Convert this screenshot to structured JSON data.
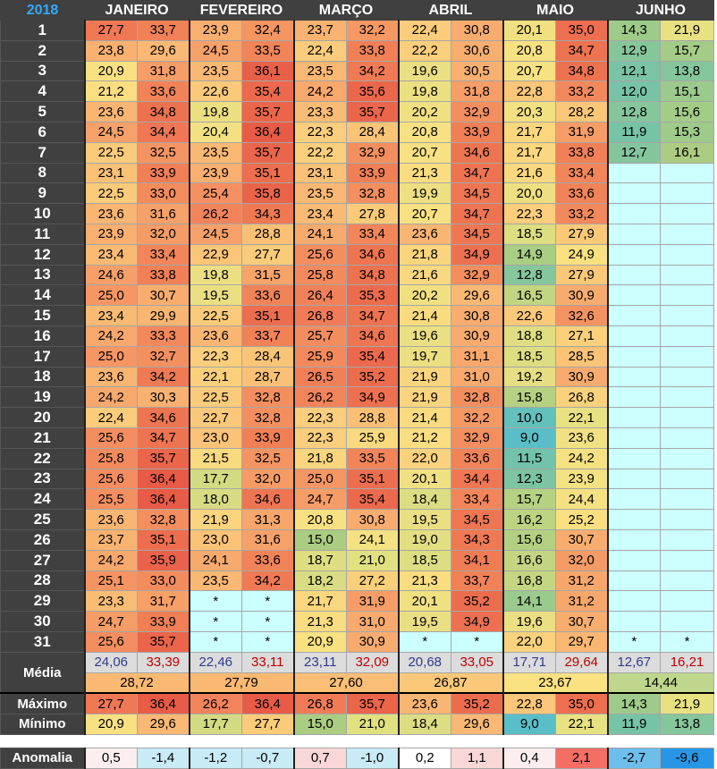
{
  "header": {
    "year": "2018",
    "months": [
      "JANEIRO",
      "FEVEREIRO",
      "MARÇO",
      "ABRIL",
      "MAIO",
      "JUNHO"
    ]
  },
  "days": [
    [
      "27,7",
      "33,7",
      "23,9",
      "32,4",
      "23,7",
      "32,2",
      "22,4",
      "30,8",
      "20,1",
      "35,0",
      "14,3",
      "21,9"
    ],
    [
      "23,8",
      "29,6",
      "24,5",
      "33,5",
      "22,4",
      "33,8",
      "22,2",
      "30,6",
      "20,8",
      "34,7",
      "12,9",
      "15,7"
    ],
    [
      "20,9",
      "31,8",
      "23,5",
      "36,1",
      "23,5",
      "34,2",
      "19,6",
      "30,5",
      "20,7",
      "34,8",
      "12,1",
      "13,8"
    ],
    [
      "21,2",
      "33,6",
      "22,6",
      "35,4",
      "24,2",
      "35,6",
      "19,8",
      "31,8",
      "22,8",
      "33,2",
      "12,0",
      "15,1"
    ],
    [
      "23,6",
      "34,8",
      "19,8",
      "35,7",
      "23,3",
      "35,7",
      "20,2",
      "32,9",
      "20,3",
      "28,2",
      "12,8",
      "15,6"
    ],
    [
      "24,5",
      "34,4",
      "20,4",
      "36,4",
      "22,3",
      "28,4",
      "20,8",
      "33,9",
      "21,7",
      "31,9",
      "11,9",
      "15,3"
    ],
    [
      "22,5",
      "32,5",
      "23,5",
      "35,7",
      "22,2",
      "32,9",
      "20,7",
      "34,6",
      "21,7",
      "33,8",
      "12,7",
      "16,1"
    ],
    [
      "23,1",
      "33,9",
      "23,9",
      "35,1",
      "23,1",
      "33,9",
      "21,3",
      "34,7",
      "21,6",
      "33,4",
      "",
      ""
    ],
    [
      "22,5",
      "33,0",
      "25,4",
      "35,8",
      "23,5",
      "32,8",
      "19,9",
      "34,5",
      "20,0",
      "33,6",
      "",
      ""
    ],
    [
      "23,6",
      "31,6",
      "26,2",
      "34,3",
      "23,4",
      "27,8",
      "20,7",
      "34,7",
      "22,3",
      "33,2",
      "",
      ""
    ],
    [
      "23,9",
      "32,0",
      "24,5",
      "28,8",
      "24,1",
      "33,4",
      "23,6",
      "34,5",
      "18,5",
      "27,9",
      "",
      ""
    ],
    [
      "23,4",
      "33,4",
      "22,9",
      "27,7",
      "25,6",
      "34,6",
      "21,8",
      "34,9",
      "14,9",
      "24,9",
      "",
      ""
    ],
    [
      "24,6",
      "33,8",
      "19,8",
      "31,5",
      "25,8",
      "34,8",
      "21,6",
      "32,9",
      "12,8",
      "27,9",
      "",
      ""
    ],
    [
      "25,0",
      "30,7",
      "19,5",
      "33,6",
      "26,4",
      "35,3",
      "20,2",
      "29,6",
      "16,5",
      "30,9",
      "",
      ""
    ],
    [
      "23,4",
      "29,9",
      "22,5",
      "35,1",
      "26,8",
      "34,7",
      "21,4",
      "30,8",
      "22,6",
      "32,6",
      "",
      ""
    ],
    [
      "24,2",
      "33,3",
      "23,6",
      "33,7",
      "25,7",
      "34,6",
      "19,6",
      "30,9",
      "18,8",
      "27,1",
      "",
      ""
    ],
    [
      "25,0",
      "32,7",
      "22,3",
      "28,4",
      "25,9",
      "35,4",
      "19,7",
      "31,1",
      "18,5",
      "28,5",
      "",
      ""
    ],
    [
      "23,6",
      "34,2",
      "22,1",
      "28,7",
      "26,5",
      "35,2",
      "21,9",
      "31,0",
      "19,2",
      "30,9",
      "",
      ""
    ],
    [
      "24,2",
      "30,3",
      "22,5",
      "32,8",
      "26,2",
      "34,9",
      "21,9",
      "32,8",
      "15,8",
      "26,8",
      "",
      ""
    ],
    [
      "22,4",
      "34,6",
      "22,7",
      "32,8",
      "22,3",
      "28,8",
      "21,4",
      "32,2",
      "10,0",
      "22,1",
      "",
      ""
    ],
    [
      "25,6",
      "34,7",
      "23,0",
      "33,9",
      "22,3",
      "25,9",
      "21,2",
      "32,9",
      "9,0",
      "23,6",
      "",
      ""
    ],
    [
      "25,8",
      "35,7",
      "21,5",
      "32,5",
      "21,8",
      "33,5",
      "22,0",
      "33,6",
      "11,5",
      "24,2",
      "",
      ""
    ],
    [
      "25,6",
      "36,4",
      "17,7",
      "32,0",
      "25,0",
      "35,1",
      "20,1",
      "34,4",
      "12,3",
      "23,9",
      "",
      ""
    ],
    [
      "25,5",
      "36,4",
      "18,0",
      "34,6",
      "24,7",
      "35,4",
      "18,4",
      "33,4",
      "15,7",
      "24,4",
      "",
      ""
    ],
    [
      "23,6",
      "32,8",
      "21,9",
      "31,3",
      "20,8",
      "30,8",
      "19,5",
      "34,5",
      "16,2",
      "25,2",
      "",
      ""
    ],
    [
      "23,7",
      "35,1",
      "23,0",
      "31,6",
      "15,0",
      "24,1",
      "19,0",
      "34,3",
      "15,6",
      "30,7",
      "",
      ""
    ],
    [
      "24,2",
      "35,9",
      "24,1",
      "33,6",
      "18,7",
      "21,0",
      "18,5",
      "34,1",
      "16,6",
      "32,0",
      "",
      ""
    ],
    [
      "25,1",
      "33,0",
      "23,5",
      "34,2",
      "18,2",
      "27,2",
      "21,3",
      "33,7",
      "16,8",
      "31,2",
      "",
      ""
    ],
    [
      "23,3",
      "31,7",
      "*",
      "*",
      "21,7",
      "31,9",
      "20,1",
      "35,2",
      "14,1",
      "31,2",
      "",
      ""
    ],
    [
      "24,7",
      "33,9",
      "*",
      "*",
      "21,3",
      "31,0",
      "19,5",
      "34,9",
      "19,6",
      "30,7",
      "",
      ""
    ],
    [
      "25,6",
      "35,7",
      "*",
      "*",
      "20,9",
      "30,9",
      "*",
      "*",
      "22,0",
      "29,7",
      "*",
      "*"
    ]
  ],
  "summary": {
    "media_label": "Média",
    "media": [
      "24,06",
      "33,39",
      "22,46",
      "33,11",
      "23,11",
      "32,09",
      "20,68",
      "33,05",
      "17,71",
      "29,64",
      "12,67",
      "16,21"
    ],
    "media_combined": [
      "28,72",
      "27,79",
      "27,60",
      "26,87",
      "23,67",
      "14,44"
    ],
    "maximo_label": "Máximo",
    "maximo": [
      "27,7",
      "36,4",
      "26,2",
      "36,4",
      "26,8",
      "35,7",
      "23,6",
      "35,2",
      "22,8",
      "35,0",
      "14,3",
      "21,9"
    ],
    "minimo_label": "Mínimo",
    "minimo": [
      "20,9",
      "29,6",
      "17,7",
      "27,7",
      "15,0",
      "21,0",
      "18,4",
      "29,6",
      "9,0",
      "22,1",
      "11,9",
      "13,8"
    ],
    "anomalia_label": "Anomalia",
    "anomalia": [
      "0,5",
      "-1,4",
      "-1,2",
      "-0,7",
      "0,7",
      "-1,0",
      "0,2",
      "1,1",
      "0,4",
      "2,1",
      "-2,7",
      "-9,6"
    ]
  },
  "colors": {
    "header_bg": "#404040",
    "year_text": "#33aaff",
    "empty_cell": "#ccffff",
    "average_bg": "#dcdcdc"
  }
}
